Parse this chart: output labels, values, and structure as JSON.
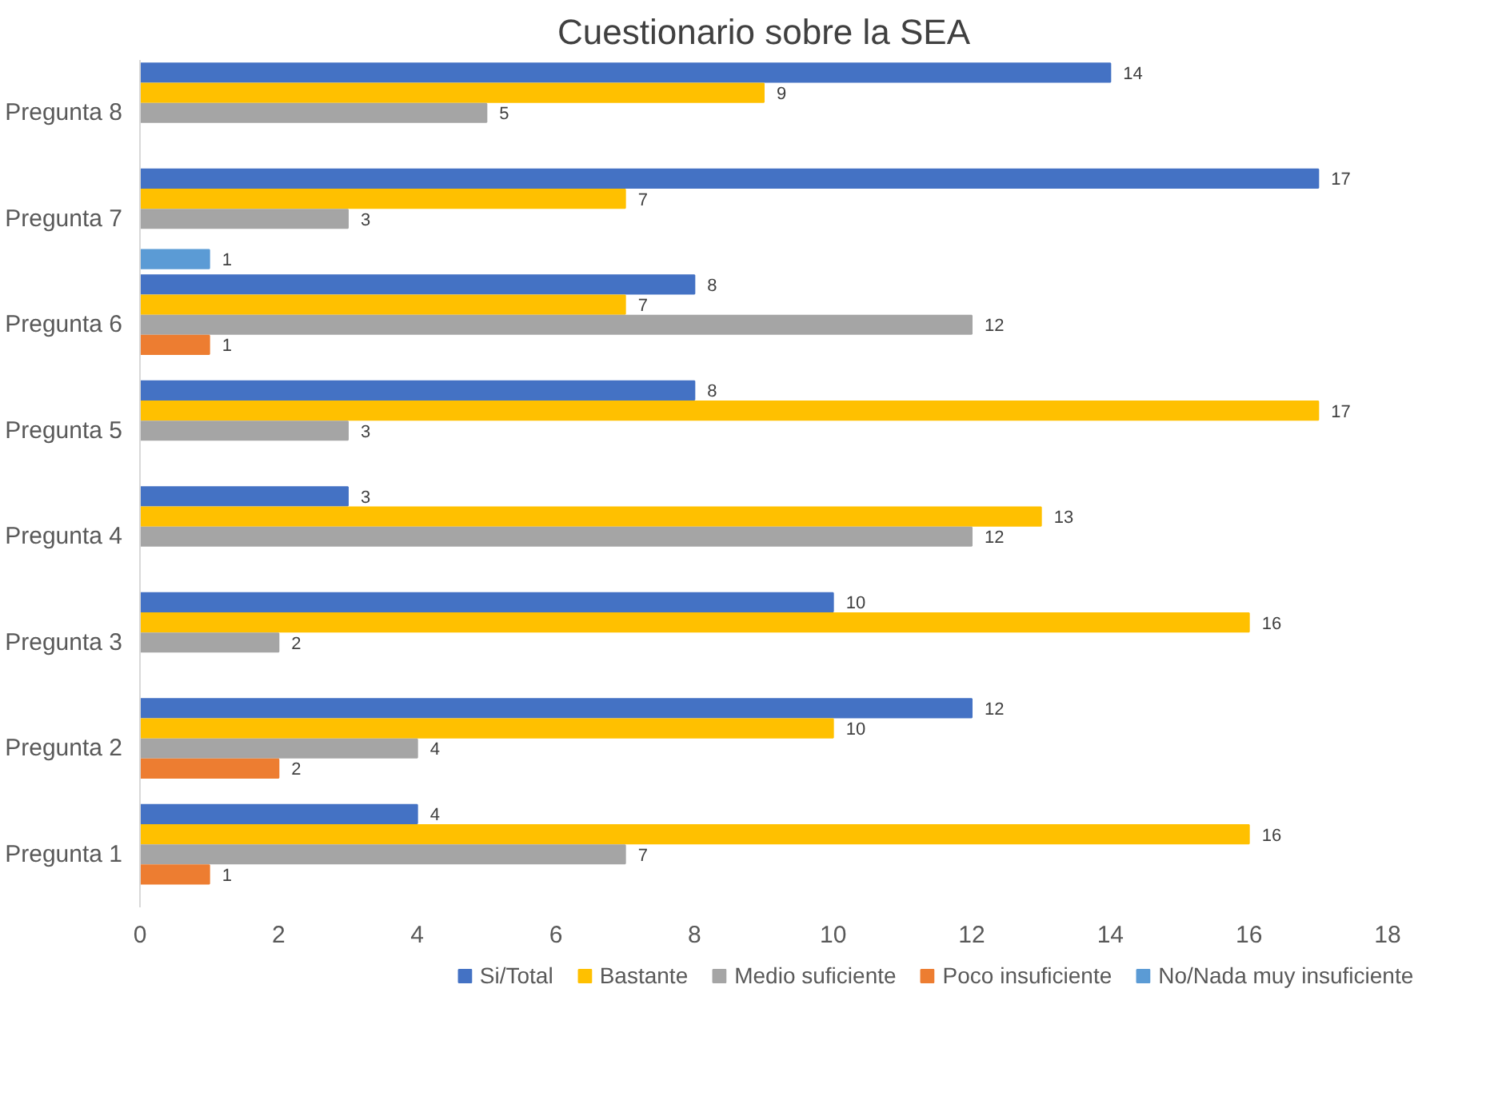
{
  "chart_data": {
    "type": "bar",
    "orientation": "horizontal",
    "title": "Cuestionario sobre la SEA",
    "categories": [
      "Pregunta 8",
      "Pregunta 7",
      "Pregunta 6",
      "Pregunta 5",
      "Pregunta 4",
      "Pregunta 3",
      "Pregunta 2",
      "Pregunta 1"
    ],
    "series": [
      {
        "name": "Si/Total",
        "color": "#4472c4",
        "values": [
          14,
          17,
          8,
          8,
          3,
          10,
          12,
          4
        ]
      },
      {
        "name": "Bastante",
        "color": "#ffc000",
        "values": [
          9,
          7,
          7,
          17,
          13,
          16,
          10,
          16
        ]
      },
      {
        "name": "Medio suficiente",
        "color": "#a5a5a5",
        "values": [
          5,
          3,
          12,
          3,
          12,
          2,
          4,
          7
        ]
      },
      {
        "name": "Poco insuficiente",
        "color": "#ed7d31",
        "values": [
          null,
          null,
          1,
          null,
          null,
          null,
          2,
          1
        ]
      },
      {
        "name": "No/Nada muy insuficiente",
        "color": "#5b9bd5",
        "values": [
          null,
          1,
          null,
          null,
          null,
          null,
          null,
          null
        ]
      }
    ],
    "xlim": [
      0,
      18
    ],
    "xticks": [
      0,
      2,
      4,
      6,
      8,
      10,
      12,
      14,
      16,
      18
    ],
    "data_labels": true,
    "grid": false,
    "legend": "bottom"
  }
}
